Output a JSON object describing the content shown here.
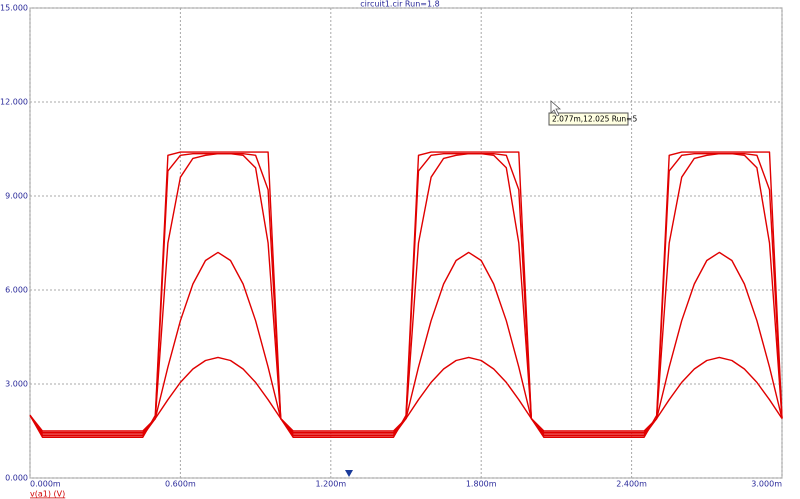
{
  "chart_data": {
    "type": "line",
    "title": "circuit1.cir Run=1.8",
    "y_label": "v(a1) (V)",
    "annotation": "2.077m,12.025 Run=5",
    "x": [
      0,
      0.05,
      0.1,
      0.15,
      0.2,
      0.25,
      0.3,
      0.35,
      0.4,
      0.45,
      0.5,
      0.55,
      0.6,
      0.65,
      0.7,
      0.75,
      0.8,
      0.85,
      0.9,
      0.95,
      1.0,
      1.05,
      1.1,
      1.15,
      1.2,
      1.25,
      1.3,
      1.35,
      1.4,
      1.45,
      1.5,
      1.55,
      1.6,
      1.65,
      1.7,
      1.75,
      1.8,
      1.85,
      1.9,
      1.95,
      2.0,
      2.05,
      2.1,
      2.15,
      2.2,
      2.25,
      2.3,
      2.35,
      2.4,
      2.45,
      2.5,
      2.55,
      2.6,
      2.65,
      2.7,
      2.75,
      2.8,
      2.85,
      2.9,
      2.95,
      3.0
    ],
    "series": [
      {
        "color": "#e00000",
        "values": [
          2.0,
          1.3,
          1.3,
          1.3,
          1.3,
          1.3,
          1.3,
          1.3,
          1.3,
          1.3,
          2.0,
          10.3,
          10.4,
          10.4,
          10.4,
          10.4,
          10.4,
          10.4,
          10.4,
          10.4,
          1.9,
          1.3,
          1.3,
          1.3,
          1.3,
          1.3,
          1.3,
          1.3,
          1.3,
          1.3,
          2.0,
          10.3,
          10.4,
          10.4,
          10.4,
          10.4,
          10.4,
          10.4,
          10.4,
          10.4,
          1.9,
          1.3,
          1.3,
          1.3,
          1.3,
          1.3,
          1.3,
          1.3,
          1.3,
          1.3,
          2.0,
          10.3,
          10.4,
          10.4,
          10.4,
          10.4,
          10.4,
          10.4,
          10.4,
          10.4,
          1.9
        ]
      },
      {
        "color": "#e00000",
        "values": [
          2.0,
          1.35,
          1.35,
          1.35,
          1.35,
          1.35,
          1.35,
          1.35,
          1.35,
          1.35,
          1.9,
          9.8,
          10.3,
          10.35,
          10.35,
          10.35,
          10.35,
          10.35,
          10.3,
          9.2,
          1.9,
          1.35,
          1.35,
          1.35,
          1.35,
          1.35,
          1.35,
          1.35,
          1.35,
          1.35,
          1.9,
          9.8,
          10.3,
          10.35,
          10.35,
          10.35,
          10.35,
          10.35,
          10.3,
          9.2,
          1.9,
          1.35,
          1.35,
          1.35,
          1.35,
          1.35,
          1.35,
          1.35,
          1.35,
          1.35,
          1.9,
          9.8,
          10.3,
          10.35,
          10.35,
          10.35,
          10.35,
          10.35,
          10.3,
          9.2,
          1.9
        ]
      },
      {
        "color": "#e00000",
        "values": [
          2.0,
          1.4,
          1.4,
          1.4,
          1.4,
          1.4,
          1.4,
          1.4,
          1.4,
          1.4,
          1.9,
          7.5,
          9.6,
          10.2,
          10.3,
          10.35,
          10.35,
          10.3,
          9.9,
          7.5,
          1.9,
          1.4,
          1.4,
          1.4,
          1.4,
          1.4,
          1.4,
          1.4,
          1.4,
          1.4,
          1.9,
          7.5,
          9.6,
          10.2,
          10.3,
          10.35,
          10.35,
          10.3,
          9.9,
          7.5,
          1.9,
          1.4,
          1.4,
          1.4,
          1.4,
          1.4,
          1.4,
          1.4,
          1.4,
          1.4,
          1.9,
          7.5,
          9.6,
          10.2,
          10.3,
          10.35,
          10.35,
          10.3,
          9.9,
          7.5,
          1.9
        ]
      },
      {
        "color": "#e00000",
        "values": [
          2.0,
          1.45,
          1.45,
          1.45,
          1.45,
          1.45,
          1.45,
          1.45,
          1.45,
          1.45,
          1.9,
          3.54,
          5.02,
          6.19,
          6.94,
          7.2,
          6.94,
          6.19,
          5.02,
          3.54,
          1.9,
          1.45,
          1.45,
          1.45,
          1.45,
          1.45,
          1.45,
          1.45,
          1.45,
          1.45,
          1.9,
          3.54,
          5.02,
          6.19,
          6.94,
          7.2,
          6.94,
          6.19,
          5.02,
          3.54,
          1.9,
          1.45,
          1.45,
          1.45,
          1.45,
          1.45,
          1.45,
          1.45,
          1.45,
          1.45,
          1.9,
          3.54,
          5.02,
          6.19,
          6.94,
          7.2,
          6.94,
          6.19,
          5.02,
          3.54,
          1.9
        ]
      },
      {
        "color": "#e00000",
        "values": [
          2.0,
          1.5,
          1.5,
          1.5,
          1.5,
          1.5,
          1.5,
          1.5,
          1.5,
          1.5,
          1.9,
          2.5,
          3.05,
          3.48,
          3.75,
          3.85,
          3.75,
          3.48,
          3.05,
          2.5,
          1.9,
          1.5,
          1.5,
          1.5,
          1.5,
          1.5,
          1.5,
          1.5,
          1.5,
          1.5,
          1.9,
          2.5,
          3.05,
          3.48,
          3.75,
          3.85,
          3.75,
          3.48,
          3.05,
          2.5,
          1.9,
          1.5,
          1.5,
          1.5,
          1.5,
          1.5,
          1.5,
          1.5,
          1.5,
          1.5,
          1.9,
          2.5,
          3.05,
          3.48,
          3.75,
          3.85,
          3.75,
          3.48,
          3.05,
          2.5,
          1.9
        ]
      }
    ],
    "xlim": [
      0,
      3.0
    ],
    "ylim": [
      0,
      15
    ],
    "xticks": [
      {
        "value": 0,
        "label": "0.000m"
      },
      {
        "value": 0.6,
        "label": "0.600m"
      },
      {
        "value": 1.2,
        "label": "1.200m"
      },
      {
        "value": 1.8,
        "label": "1.800m"
      },
      {
        "value": 2.4,
        "label": "2.400m"
      },
      {
        "value": 3.0,
        "label": "3.000m"
      }
    ],
    "yticks": [
      {
        "value": 0,
        "label": "0.000"
      },
      {
        "value": 3,
        "label": "3.000"
      },
      {
        "value": 6,
        "label": "6.000"
      },
      {
        "value": 9,
        "label": "9.000"
      },
      {
        "value": 12,
        "label": "12.000"
      },
      {
        "value": 15,
        "label": "15.000"
      }
    ],
    "grid": true
  }
}
